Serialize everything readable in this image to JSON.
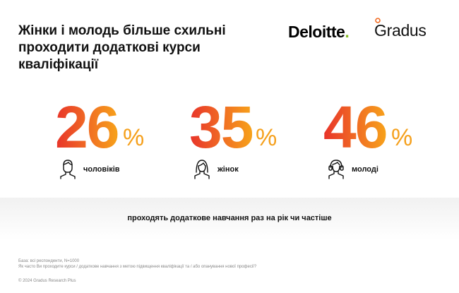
{
  "title": "Жінки і молодь більше схильні проходити додаткові курси кваліфікації",
  "logos": {
    "deloitte": "Deloitte",
    "deloitte_dot": ".",
    "gradus": "Gradus"
  },
  "stats": [
    {
      "value": "26",
      "unit": "%",
      "label": "чоловіків",
      "icon": "man-icon"
    },
    {
      "value": "35",
      "unit": "%",
      "label": "жінок",
      "icon": "woman-icon"
    },
    {
      "value": "46",
      "unit": "%",
      "label": "молоді",
      "icon": "youth-headphones-icon"
    }
  ],
  "band_text": "проходять додаткове навчання раз на рік чи частіше",
  "footer": {
    "base": "База: всі респонденти, N=1000",
    "question": "Як часто Ви проходите курси / додаткове навчання з метою підвищення кваліфікації та / або опанування нової професії?",
    "copyright": "© 2024 Gradus Research Plus"
  },
  "colors": {
    "gradient_start": "#e8332a",
    "gradient_end": "#f7a21a",
    "deloitte_green": "#86bc25",
    "gradus_orange": "#f26a21"
  }
}
